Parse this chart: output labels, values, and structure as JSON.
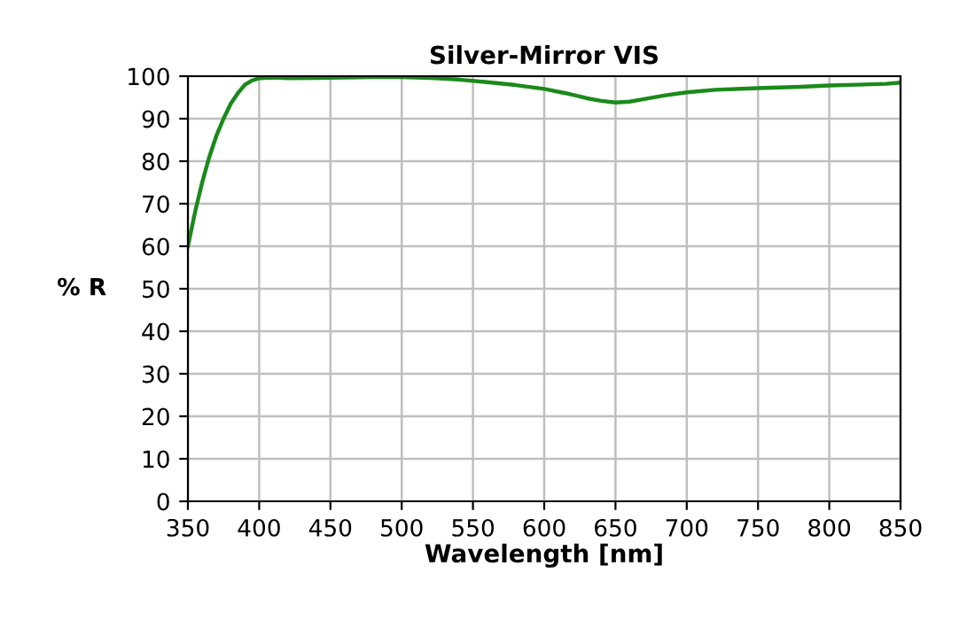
{
  "chart_data": {
    "type": "line",
    "title": "Silver-Mirror VIS",
    "xlabel": "Wavelength [nm]",
    "ylabel": "% R",
    "series": [
      {
        "color": "#1a8a1a",
        "x": [
          350,
          355,
          360,
          365,
          370,
          375,
          380,
          385,
          390,
          395,
          400,
          410,
          420,
          440,
          460,
          480,
          500,
          520,
          540,
          560,
          580,
          600,
          615,
          630,
          640,
          650,
          660,
          670,
          685,
          700,
          720,
          750,
          780,
          800,
          820,
          840,
          850
        ],
        "values": [
          60,
          68,
          75,
          81,
          86,
          90,
          93.5,
          96,
          98,
          99,
          99.5,
          99.7,
          99.5,
          99.6,
          99.7,
          99.8,
          99.8,
          99.6,
          99.2,
          98.6,
          97.9,
          97,
          96,
          94.8,
          94.2,
          93.8,
          94,
          94.6,
          95.5,
          96.2,
          96.8,
          97.2,
          97.5,
          97.8,
          98,
          98.2,
          98.5
        ]
      }
    ],
    "xlim": [
      350,
      850
    ],
    "xticks": [
      350,
      400,
      450,
      500,
      550,
      600,
      650,
      700,
      750,
      800,
      850
    ],
    "ylim": [
      0,
      100
    ],
    "yticks": [
      0,
      10,
      20,
      30,
      40,
      50,
      60,
      70,
      80,
      90,
      100
    ],
    "grid": true,
    "legend": false,
    "marker": "none",
    "line_style": "solid"
  }
}
